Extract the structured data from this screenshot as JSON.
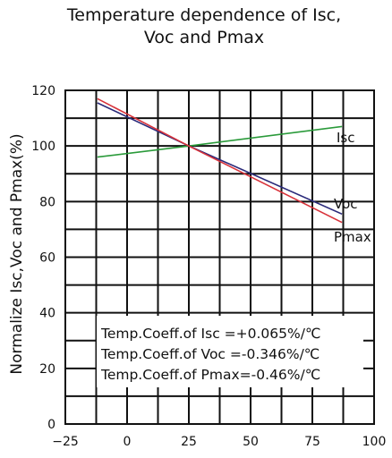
{
  "chart_data": {
    "type": "line",
    "title_lines": [
      "Temperature dependence of Isc,",
      "Voc and Pmax"
    ],
    "ylabel": "Normalize Isc,Voc and Pmax(%)",
    "xlabel": "",
    "xlim": [
      -25,
      100
    ],
    "ylim": [
      0,
      120
    ],
    "x_ticks": [
      "−25",
      "0",
      "25",
      "50",
      "75",
      "100"
    ],
    "y_ticks": [
      "0",
      "20",
      "40",
      "60",
      "80",
      "100",
      "120"
    ],
    "grid": true,
    "series": [
      {
        "name": "Isc",
        "x": [
          -12,
          25,
          87
        ],
        "y": [
          96,
          100,
          107
        ],
        "color": "#2a9a3a"
      },
      {
        "name": "Voc",
        "x": [
          -12,
          25,
          87
        ],
        "y": [
          115.5,
          100,
          75.5
        ],
        "color": "#2a2a7a"
      },
      {
        "name": "Pmax",
        "x": [
          -12,
          25,
          87
        ],
        "y": [
          117,
          100,
          72.5
        ],
        "color": "#d8323a"
      }
    ],
    "annotations": [
      "Temp.Coeff.of Isc =+0.065%/℃",
      "Temp.Coeff.of Voc =-0.346%/℃",
      "Temp.Coeff.of Pmax=-0.46%/℃"
    ]
  }
}
